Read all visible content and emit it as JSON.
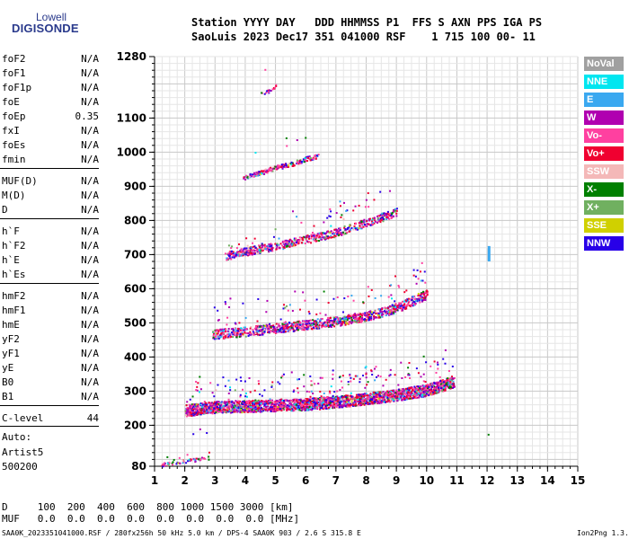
{
  "logo": {
    "line1": "Lowell",
    "line2": "DIGISONDE"
  },
  "header": {
    "row1": "Station YYYY DAY   DDD HHMMSS P1  FFS S AXN PPS IGA PS",
    "row2": "SaoLuis 2023 Dec17 351 041000 RSF    1 715 100 00- 11"
  },
  "params": [
    {
      "name": "foF2",
      "value": "N/A"
    },
    {
      "name": "foF1",
      "value": "N/A"
    },
    {
      "name": "foF1p",
      "value": "N/A"
    },
    {
      "name": "foE",
      "value": "N/A"
    },
    {
      "name": "foEp",
      "value": "0.35"
    },
    {
      "name": "fxI",
      "value": "N/A"
    },
    {
      "name": "foEs",
      "value": "N/A"
    },
    {
      "name": "fmin",
      "value": "N/A"
    },
    {
      "name": "MUF(D)",
      "value": "N/A"
    },
    {
      "name": "M(D)",
      "value": "N/A"
    },
    {
      "name": "D",
      "value": "N/A"
    },
    {
      "name": "h`F",
      "value": "N/A"
    },
    {
      "name": "h`F2",
      "value": "N/A"
    },
    {
      "name": "h`E",
      "value": "N/A"
    },
    {
      "name": "h`Es",
      "value": "N/A"
    },
    {
      "name": "hmF2",
      "value": "N/A"
    },
    {
      "name": "hmF1",
      "value": "N/A"
    },
    {
      "name": "hmE",
      "value": "N/A"
    },
    {
      "name": "yF2",
      "value": "N/A"
    },
    {
      "name": "yF1",
      "value": "N/A"
    },
    {
      "name": "yE",
      "value": "N/A"
    },
    {
      "name": "B0",
      "value": "N/A"
    },
    {
      "name": "B1",
      "value": "N/A"
    },
    {
      "name": "C-level",
      "value": "44"
    }
  ],
  "auto": {
    "line1": "Auto:",
    "line2": "Artist5",
    "line3": "500200"
  },
  "legend": [
    {
      "label": "NoVal",
      "color": "#a0a0a0"
    },
    {
      "label": "NNE",
      "color": "#00e6f0"
    },
    {
      "label": "E",
      "color": "#3aa8f0"
    },
    {
      "label": "W",
      "color": "#b000b0"
    },
    {
      "label": "Vo-",
      "color": "#ff40a0"
    },
    {
      "label": "Vo+",
      "color": "#f00030"
    },
    {
      "label": "SSW",
      "color": "#f4b8b8"
    },
    {
      "label": "X-",
      "color": "#008000"
    },
    {
      "label": "X+",
      "color": "#70b060"
    },
    {
      "label": "SSE",
      "color": "#d0d000"
    },
    {
      "label": "NNW",
      "color": "#2800e8"
    }
  ],
  "bottom": {
    "row1": "D     100  200  400  600  800 1000 1500 3000 [km]",
    "row2": "MUF   0.0  0.0  0.0  0.0  0.0  0.0  0.0  0.0 [MHz]"
  },
  "footer": {
    "left": "SAA0K_2023351041000.RSF / 280fx256h 50 kHz 5.0 km / DPS-4 SAA0K 903 / 2.6 S 315.8 E",
    "right": "Ion2Png 1.3.17"
  },
  "chart_data": {
    "type": "scatter",
    "title": "",
    "xlabel": "",
    "ylabel": "",
    "x_ticks": [
      1,
      2,
      3,
      4,
      5,
      6,
      7,
      8,
      9,
      10,
      11,
      12,
      13,
      14,
      15
    ],
    "y_ticks": [
      80,
      200,
      300,
      400,
      500,
      600,
      700,
      800,
      900,
      1000,
      1100,
      1280
    ],
    "xlim": [
      1,
      15
    ],
    "ylim": [
      80,
      1280
    ],
    "grid": true,
    "traces": [
      {
        "name": "F trace",
        "x": [
          2.0,
          3.0,
          4.0,
          5.0,
          6.0,
          7.0,
          8.0,
          9.0,
          10.0,
          10.9
        ],
        "y": [
          240,
          250,
          252,
          255,
          258,
          265,
          275,
          285,
          300,
          325
        ]
      },
      {
        "name": "2F echo",
        "x": [
          2.9,
          4.0,
          5.0,
          6.0,
          7.0,
          8.0,
          9.0,
          10.0
        ],
        "y": [
          462,
          470,
          480,
          490,
          500,
          515,
          540,
          580
        ]
      },
      {
        "name": "3F echo",
        "x": [
          3.3,
          4.0,
          5.0,
          6.0,
          7.0,
          8.0,
          9.0
        ],
        "y": [
          690,
          705,
          720,
          740,
          760,
          790,
          820
        ]
      },
      {
        "name": "4F echo",
        "x": [
          3.9,
          4.5,
          5.0,
          5.5,
          6.0,
          6.4
        ],
        "y": [
          925,
          940,
          955,
          965,
          980,
          990
        ]
      },
      {
        "name": "5F echo",
        "x": [
          4.5,
          4.8,
          5.0
        ],
        "y": [
          1170,
          1180,
          1195
        ]
      },
      {
        "name": "low echo",
        "x": [
          1.2,
          1.6,
          2.0,
          2.4,
          2.8
        ],
        "y": [
          85,
          90,
          95,
          100,
          105
        ]
      }
    ],
    "marker": {
      "x": 12.05,
      "y": [
        680,
        725
      ]
    }
  }
}
